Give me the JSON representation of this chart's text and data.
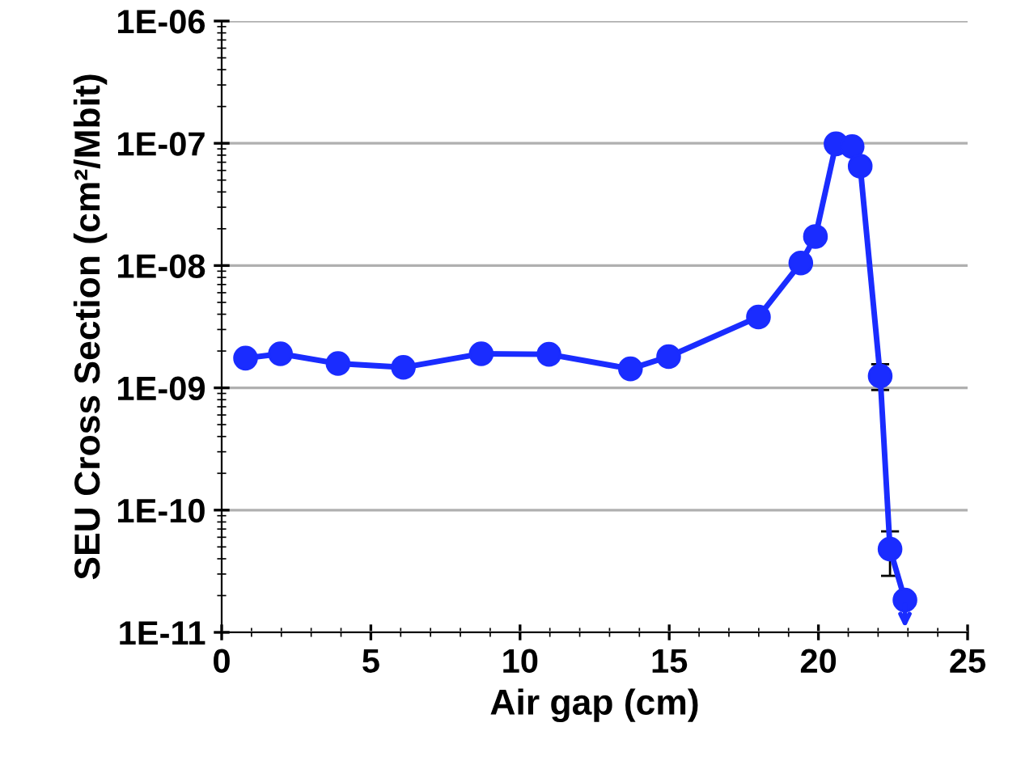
{
  "chart_data": {
    "type": "line",
    "xlabel": "Air gap (cm)",
    "ylabel": "SEU Cross Section (cm²/Mbit)",
    "x": [
      0.8,
      1.97,
      3.9,
      6.09,
      8.7,
      10.97,
      13.7,
      14.98,
      17.99,
      19.41,
      19.9,
      20.59,
      21.13,
      21.4,
      22.07,
      22.4,
      22.9
    ],
    "series": [
      {
        "color": "#1a2cff",
        "values": [
          1.75e-09,
          1.9e-09,
          1.58e-09,
          1.47e-09,
          1.9e-09,
          1.88e-09,
          1.43e-09,
          1.8e-09,
          3.8e-09,
          1.05e-08,
          1.73e-08,
          9.9e-08,
          9.4e-08,
          6.5e-08,
          1.25e-09,
          4.8e-11,
          1.84e-11
        ],
        "errors": [
          null,
          null,
          null,
          null,
          null,
          null,
          null,
          null,
          null,
          null,
          null,
          null,
          null,
          null,
          [
            9.6e-10,
            1.56e-09
          ],
          [
            2.9e-11,
            6.7e-11
          ],
          null
        ]
      }
    ],
    "log": "y",
    "marker": "circle",
    "line_style": "solid",
    "grid": "y",
    "xlim": [
      0,
      25
    ],
    "xticks": [
      0,
      5,
      10,
      15,
      20,
      25
    ],
    "ylim": [
      1e-11,
      1e-06
    ],
    "yticks": [
      {
        "value": 1e-11,
        "label": "1E-11"
      },
      {
        "value": 1e-10,
        "label": "1E-10"
      },
      {
        "value": 1e-09,
        "label": "1E-09"
      },
      {
        "value": 1e-08,
        "label": "1E-08"
      },
      {
        "value": 1e-07,
        "label": "1E-07"
      },
      {
        "value": 1e-06,
        "label": "1E-06"
      }
    ]
  }
}
